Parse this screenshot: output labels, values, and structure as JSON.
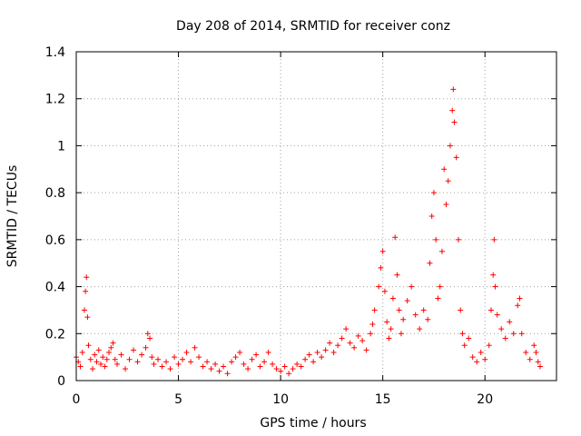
{
  "chart_data": {
    "type": "scatter",
    "title": "Day 208 of 2014, SRMTID for receiver conz",
    "xlabel": "GPS time / hours",
    "ylabel": "SRMTID / TECUs",
    "xlim": [
      0,
      23.5
    ],
    "ylim": [
      0,
      1.4
    ],
    "xticks": [
      0,
      5,
      10,
      15,
      20
    ],
    "xtick_labels": [
      "0",
      "5",
      "10",
      "15",
      "20"
    ],
    "yticks": [
      0,
      0.2,
      0.4,
      0.6,
      0.8,
      1.0,
      1.2,
      1.4
    ],
    "ytick_labels": [
      "0",
      "0.2",
      "0.4",
      "0.6",
      "0.8",
      "1",
      "1.2",
      "1.4"
    ],
    "grid": true,
    "marker": "+",
    "color": "#ff0000",
    "series": [
      {
        "name": "SRMTID",
        "points": [
          [
            0.0,
            0.1
          ],
          [
            0.1,
            0.08
          ],
          [
            0.2,
            0.06
          ],
          [
            0.3,
            0.12
          ],
          [
            0.4,
            0.3
          ],
          [
            0.45,
            0.38
          ],
          [
            0.5,
            0.44
          ],
          [
            0.55,
            0.27
          ],
          [
            0.6,
            0.15
          ],
          [
            0.7,
            0.09
          ],
          [
            0.8,
            0.05
          ],
          [
            0.9,
            0.11
          ],
          [
            1.0,
            0.08
          ],
          [
            1.1,
            0.13
          ],
          [
            1.2,
            0.07
          ],
          [
            1.3,
            0.1
          ],
          [
            1.4,
            0.06
          ],
          [
            1.5,
            0.09
          ],
          [
            1.6,
            0.12
          ],
          [
            1.7,
            0.14
          ],
          [
            1.8,
            0.16
          ],
          [
            1.9,
            0.09
          ],
          [
            2.0,
            0.07
          ],
          [
            2.2,
            0.11
          ],
          [
            2.4,
            0.05
          ],
          [
            2.6,
            0.09
          ],
          [
            2.8,
            0.13
          ],
          [
            3.0,
            0.08
          ],
          [
            3.2,
            0.11
          ],
          [
            3.4,
            0.14
          ],
          [
            3.5,
            0.2
          ],
          [
            3.6,
            0.18
          ],
          [
            3.7,
            0.1
          ],
          [
            3.8,
            0.07
          ],
          [
            4.0,
            0.09
          ],
          [
            4.2,
            0.06
          ],
          [
            4.4,
            0.08
          ],
          [
            4.6,
            0.05
          ],
          [
            4.8,
            0.1
          ],
          [
            5.0,
            0.07
          ],
          [
            5.2,
            0.09
          ],
          [
            5.4,
            0.12
          ],
          [
            5.6,
            0.08
          ],
          [
            5.8,
            0.14
          ],
          [
            6.0,
            0.1
          ],
          [
            6.2,
            0.06
          ],
          [
            6.4,
            0.08
          ],
          [
            6.6,
            0.05
          ],
          [
            6.8,
            0.07
          ],
          [
            7.0,
            0.04
          ],
          [
            7.2,
            0.06
          ],
          [
            7.4,
            0.03
          ],
          [
            7.6,
            0.08
          ],
          [
            7.8,
            0.1
          ],
          [
            8.0,
            0.12
          ],
          [
            8.2,
            0.07
          ],
          [
            8.4,
            0.05
          ],
          [
            8.6,
            0.09
          ],
          [
            8.8,
            0.11
          ],
          [
            9.0,
            0.06
          ],
          [
            9.2,
            0.08
          ],
          [
            9.4,
            0.12
          ],
          [
            9.6,
            0.07
          ],
          [
            9.8,
            0.05
          ],
          [
            10.0,
            0.04
          ],
          [
            10.2,
            0.06
          ],
          [
            10.4,
            0.03
          ],
          [
            10.6,
            0.05
          ],
          [
            10.8,
            0.07
          ],
          [
            11.0,
            0.06
          ],
          [
            11.2,
            0.09
          ],
          [
            11.4,
            0.11
          ],
          [
            11.6,
            0.08
          ],
          [
            11.8,
            0.12
          ],
          [
            12.0,
            0.1
          ],
          [
            12.2,
            0.13
          ],
          [
            12.4,
            0.16
          ],
          [
            12.6,
            0.12
          ],
          [
            12.8,
            0.15
          ],
          [
            13.0,
            0.18
          ],
          [
            13.2,
            0.22
          ],
          [
            13.4,
            0.16
          ],
          [
            13.6,
            0.14
          ],
          [
            13.8,
            0.19
          ],
          [
            14.0,
            0.17
          ],
          [
            14.2,
            0.13
          ],
          [
            14.4,
            0.2
          ],
          [
            14.5,
            0.24
          ],
          [
            14.6,
            0.3
          ],
          [
            14.8,
            0.4
          ],
          [
            14.9,
            0.48
          ],
          [
            15.0,
            0.55
          ],
          [
            15.1,
            0.38
          ],
          [
            15.2,
            0.25
          ],
          [
            15.3,
            0.18
          ],
          [
            15.4,
            0.22
          ],
          [
            15.5,
            0.35
          ],
          [
            15.6,
            0.61
          ],
          [
            15.7,
            0.45
          ],
          [
            15.8,
            0.3
          ],
          [
            15.9,
            0.2
          ],
          [
            16.0,
            0.26
          ],
          [
            16.2,
            0.34
          ],
          [
            16.4,
            0.4
          ],
          [
            16.6,
            0.28
          ],
          [
            16.8,
            0.22
          ],
          [
            17.0,
            0.3
          ],
          [
            17.2,
            0.26
          ],
          [
            17.3,
            0.5
          ],
          [
            17.4,
            0.7
          ],
          [
            17.5,
            0.8
          ],
          [
            17.6,
            0.6
          ],
          [
            17.7,
            0.35
          ],
          [
            17.8,
            0.4
          ],
          [
            17.9,
            0.55
          ],
          [
            18.0,
            0.9
          ],
          [
            18.1,
            0.75
          ],
          [
            18.2,
            0.85
          ],
          [
            18.3,
            1.0
          ],
          [
            18.4,
            1.15
          ],
          [
            18.45,
            1.24
          ],
          [
            18.5,
            1.1
          ],
          [
            18.6,
            0.95
          ],
          [
            18.7,
            0.6
          ],
          [
            18.8,
            0.3
          ],
          [
            18.9,
            0.2
          ],
          [
            19.0,
            0.15
          ],
          [
            19.2,
            0.18
          ],
          [
            19.4,
            0.1
          ],
          [
            19.6,
            0.08
          ],
          [
            19.8,
            0.12
          ],
          [
            20.0,
            0.09
          ],
          [
            20.2,
            0.15
          ],
          [
            20.3,
            0.3
          ],
          [
            20.4,
            0.45
          ],
          [
            20.45,
            0.6
          ],
          [
            20.5,
            0.4
          ],
          [
            20.6,
            0.28
          ],
          [
            20.8,
            0.22
          ],
          [
            21.0,
            0.18
          ],
          [
            21.2,
            0.25
          ],
          [
            21.4,
            0.2
          ],
          [
            21.6,
            0.32
          ],
          [
            21.7,
            0.35
          ],
          [
            21.8,
            0.2
          ],
          [
            22.0,
            0.12
          ],
          [
            22.2,
            0.09
          ],
          [
            22.4,
            0.15
          ],
          [
            22.5,
            0.12
          ],
          [
            22.6,
            0.08
          ],
          [
            22.7,
            0.06
          ]
        ]
      }
    ]
  }
}
